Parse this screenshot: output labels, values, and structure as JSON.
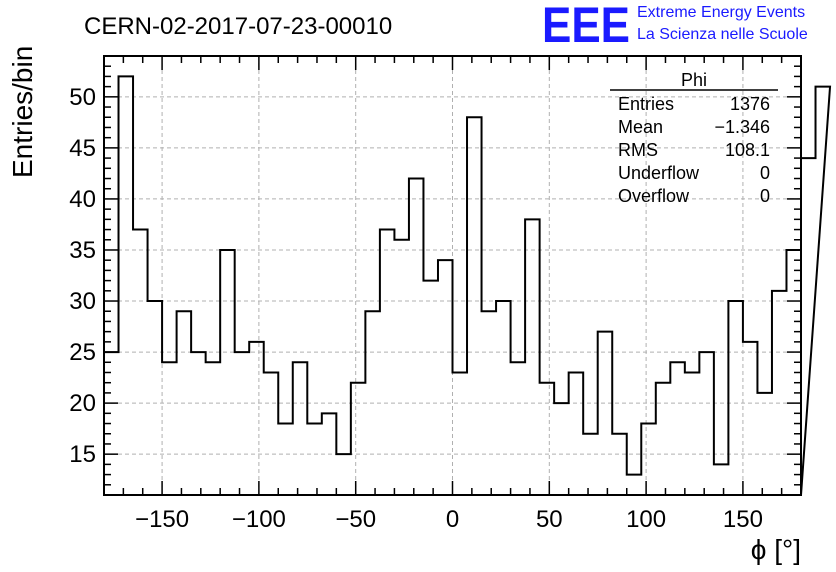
{
  "chart_data": {
    "type": "histogram",
    "title": "CERN-02-2017-07-23-00010",
    "xlabel": "ϕ [°]",
    "ylabel": "Entries/bin",
    "xlim": [
      -180,
      180
    ],
    "ylim": [
      11,
      54
    ],
    "x_ticks": [
      -150,
      -100,
      -50,
      0,
      50,
      100,
      150
    ],
    "x_tick_labels": [
      "−150",
      "−100",
      "−50",
      "0",
      "50",
      "100",
      "150"
    ],
    "y_ticks": [
      15,
      20,
      25,
      30,
      35,
      40,
      45,
      50
    ],
    "y_tick_labels": [
      "15",
      "20",
      "25",
      "30",
      "35",
      "40",
      "45",
      "50"
    ],
    "grid": true,
    "bin_edges_start": -180,
    "bin_width": 7.5,
    "values": [
      25,
      52,
      37,
      30,
      24,
      29,
      25,
      24,
      35,
      25,
      26,
      23,
      18,
      24,
      18,
      19,
      15,
      22,
      29,
      37,
      36,
      42,
      32,
      34,
      23,
      48,
      29,
      30,
      24,
      38,
      22,
      20,
      23,
      17,
      27,
      17,
      13,
      18,
      22,
      24,
      23,
      25,
      14,
      30,
      26,
      21,
      31,
      35,
      44,
      51
    ]
  },
  "logo": {
    "mark": "EEE",
    "line1": "Extreme Energy Events",
    "line2": "La Scienza nelle Scuole",
    "color": "#1a1aff"
  },
  "stats_box": {
    "name": "Phi",
    "rows": [
      {
        "label": "Entries",
        "value": "1376"
      },
      {
        "label": "Mean",
        "value": "−1.346"
      },
      {
        "label": "RMS",
        "value": "108.1"
      },
      {
        "label": "Underflow",
        "value": "0"
      },
      {
        "label": "Overflow",
        "value": "0"
      }
    ]
  }
}
